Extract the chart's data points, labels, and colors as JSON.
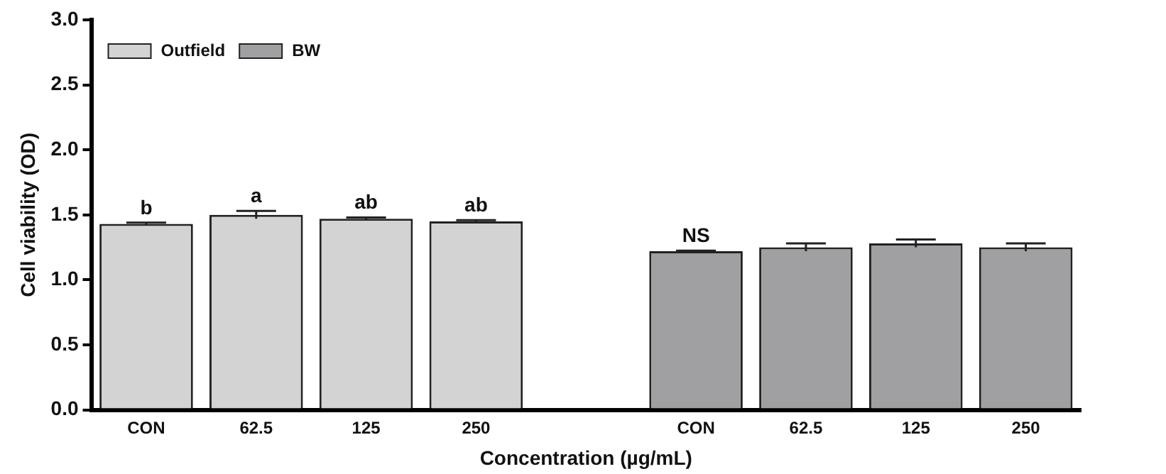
{
  "chart_data": {
    "type": "bar",
    "xlabel": "Concentration (µg/mL)",
    "ylabel": "Cell viability (OD)",
    "categories": [
      "CON",
      "62.5",
      "125",
      "250",
      null,
      "CON",
      "62.5",
      "125",
      "250"
    ],
    "series": [
      {
        "name": "Outfield",
        "color": "#d3d3d3",
        "values": [
          1.43,
          1.5,
          1.47,
          1.45,
          null,
          null,
          null,
          null,
          null
        ],
        "errors": [
          0.01,
          0.03,
          0.01,
          0.01,
          null,
          null,
          null,
          null,
          null
        ],
        "value_labels": [
          "b",
          "a",
          "ab",
          "ab",
          null,
          null,
          null,
          null,
          null
        ]
      },
      {
        "name": "BW",
        "color": "#a0a0a2",
        "values": [
          null,
          null,
          null,
          null,
          null,
          1.22,
          1.25,
          1.28,
          1.25
        ],
        "errors": [
          null,
          null,
          null,
          null,
          null,
          0.005,
          0.03,
          0.03,
          0.03
        ],
        "value_labels": [
          null,
          null,
          null,
          null,
          null,
          "NS",
          null,
          null,
          null
        ]
      }
    ],
    "ylim": [
      0,
      3
    ],
    "yticks": [
      {
        "value": 0,
        "label": "0.0"
      },
      {
        "value": 0.5,
        "label": "0.5"
      },
      {
        "value": 1,
        "label": "1.0"
      },
      {
        "value": 1.5,
        "label": "1.5"
      },
      {
        "value": 2,
        "label": "2.0"
      },
      {
        "value": 2.5,
        "label": "2.5"
      },
      {
        "value": 3,
        "label": "3.0"
      }
    ],
    "grid": false,
    "legend": "top left"
  }
}
